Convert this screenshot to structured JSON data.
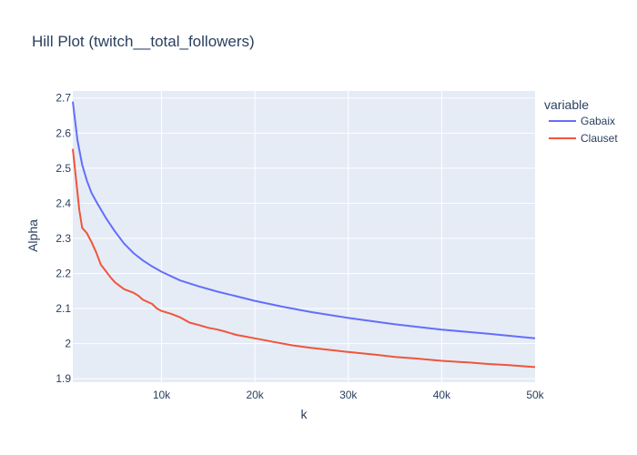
{
  "chart_data": {
    "type": "line",
    "title": "Hill Plot (twitch__total_followers)",
    "xlabel": "k",
    "ylabel": "Alpha",
    "legend_title": "variable",
    "legend_position": "right",
    "grid": true,
    "background_color": "#e5ecf6",
    "xlim": [
      500,
      50000
    ],
    "ylim": [
      1.89,
      2.72
    ],
    "x_ticks": [
      {
        "value": 10000,
        "label": "10k"
      },
      {
        "value": 20000,
        "label": "20k"
      },
      {
        "value": 30000,
        "label": "30k"
      },
      {
        "value": 40000,
        "label": "40k"
      },
      {
        "value": 50000,
        "label": "50k"
      }
    ],
    "y_ticks": [
      {
        "value": 1.9,
        "label": "1.9"
      },
      {
        "value": 2.0,
        "label": "2"
      },
      {
        "value": 2.1,
        "label": "2.1"
      },
      {
        "value": 2.2,
        "label": "2.2"
      },
      {
        "value": 2.3,
        "label": "2.3"
      },
      {
        "value": 2.4,
        "label": "2.4"
      },
      {
        "value": 2.5,
        "label": "2.5"
      },
      {
        "value": 2.6,
        "label": "2.6"
      },
      {
        "value": 2.7,
        "label": "2.7"
      }
    ],
    "series": [
      {
        "name": "Gabaix",
        "color": "#636efa",
        "x": [
          500,
          1000,
          1500,
          2000,
          2500,
          3000,
          4000,
          5000,
          6000,
          7000,
          8000,
          9000,
          10000,
          12000,
          14000,
          16000,
          18000,
          20000,
          23000,
          26000,
          30000,
          35000,
          40000,
          45000,
          50000
        ],
        "y": [
          2.69,
          2.58,
          2.51,
          2.465,
          2.43,
          2.405,
          2.36,
          2.32,
          2.285,
          2.258,
          2.237,
          2.22,
          2.205,
          2.18,
          2.163,
          2.148,
          2.135,
          2.122,
          2.105,
          2.09,
          2.073,
          2.055,
          2.04,
          2.028,
          2.015
        ]
      },
      {
        "name": "Clauset",
        "color": "#ef553b",
        "x": [
          500,
          800,
          1200,
          1500,
          2000,
          2500,
          3000,
          3500,
          4000,
          4500,
          5000,
          6000,
          7000,
          7500,
          8000,
          9000,
          9500,
          10000,
          11000,
          12000,
          13000,
          14000,
          15000,
          16000,
          17000,
          18000,
          19000,
          20000,
          22000,
          24000,
          26000,
          28000,
          30000,
          33000,
          35000,
          37000,
          40000,
          43000,
          45000,
          47000,
          50000
        ],
        "y": [
          2.555,
          2.48,
          2.38,
          2.33,
          2.315,
          2.29,
          2.26,
          2.225,
          2.208,
          2.19,
          2.175,
          2.155,
          2.145,
          2.137,
          2.125,
          2.113,
          2.1,
          2.093,
          2.085,
          2.075,
          2.06,
          2.053,
          2.045,
          2.04,
          2.033,
          2.025,
          2.02,
          2.015,
          2.005,
          1.995,
          1.988,
          1.982,
          1.976,
          1.968,
          1.962,
          1.958,
          1.951,
          1.946,
          1.942,
          1.939,
          1.933
        ]
      }
    ]
  }
}
